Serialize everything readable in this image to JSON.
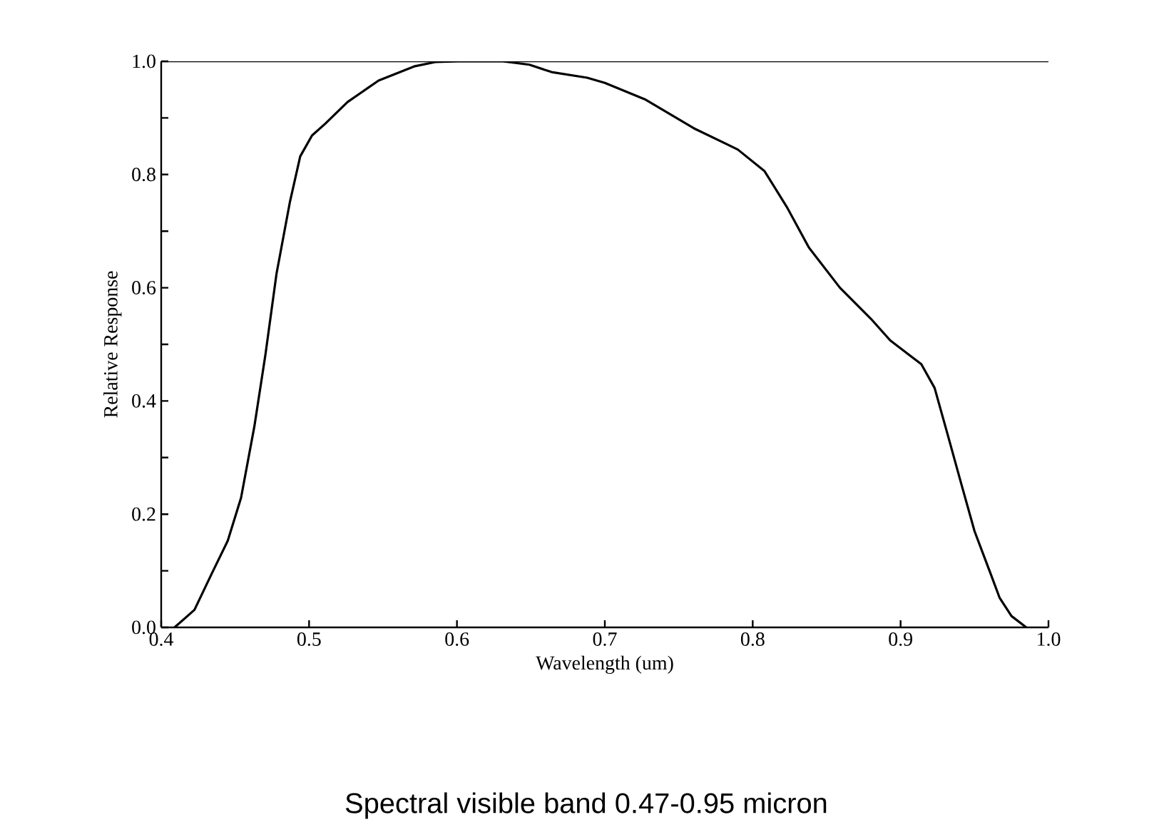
{
  "chart_data": {
    "type": "line",
    "xlabel": "Wavelength (um)",
    "ylabel": "Relative Response",
    "annotations": [
      "Spectral visible band  0.47-0.95 micron"
    ],
    "x": [
      0.409,
      0.4225,
      0.434,
      0.445,
      0.454,
      0.463,
      0.4705,
      0.478,
      0.487,
      0.494,
      0.502,
      0.511,
      0.526,
      0.547,
      0.571,
      0.586,
      0.601,
      0.631,
      0.649,
      0.664,
      0.688,
      0.7,
      0.727,
      0.76,
      0.79,
      0.808,
      0.823,
      0.838,
      0.859,
      0.88,
      0.893,
      0.914,
      0.923,
      0.932,
      0.941,
      0.95,
      0.961,
      0.967,
      0.975,
      0.985
    ],
    "series": [
      {
        "color": "#000000",
        "values": [
          0,
          0.031,
          0.094,
          0.153,
          0.229,
          0.355,
          0.482,
          0.625,
          0.751,
          0.832,
          0.869,
          0.89,
          0.928,
          0.966,
          0.991,
          0.999,
          1.0,
          1.0,
          0.994,
          0.981,
          0.971,
          0.962,
          0.933,
          0.882,
          0.844,
          0.806,
          0.743,
          0.671,
          0.6,
          0.545,
          0.507,
          0.465,
          0.423,
          0.339,
          0.254,
          0.17,
          0.094,
          0.052,
          0.02,
          0.0
        ]
      }
    ],
    "xlim": [
      0.4,
      1.0
    ],
    "ylim": [
      0.0,
      1.0
    ],
    "xticks": [
      {
        "value": 0.4,
        "label": "0.4"
      },
      {
        "value": 0.5,
        "label": "0.5"
      },
      {
        "value": 0.6,
        "label": "0.6"
      },
      {
        "value": 0.7,
        "label": "0.7"
      },
      {
        "value": 0.8,
        "label": "0.8"
      },
      {
        "value": 0.9,
        "label": "0.9"
      },
      {
        "value": 1.0,
        "label": "1.0"
      }
    ],
    "yticks": [
      {
        "value": 0.0,
        "label": "0.0"
      },
      {
        "value": 0.1,
        "label": null
      },
      {
        "value": 0.2,
        "label": "0.2"
      },
      {
        "value": 0.3,
        "label": null
      },
      {
        "value": 0.4,
        "label": "0.4"
      },
      {
        "value": 0.5,
        "label": null
      },
      {
        "value": 0.6,
        "label": "0.6"
      },
      {
        "value": 0.7,
        "label": null
      },
      {
        "value": 0.8,
        "label": "0.8"
      },
      {
        "value": 0.9,
        "label": null
      },
      {
        "value": 1.0,
        "label": "1.0"
      }
    ],
    "marker": "none",
    "line_style": "solid"
  }
}
